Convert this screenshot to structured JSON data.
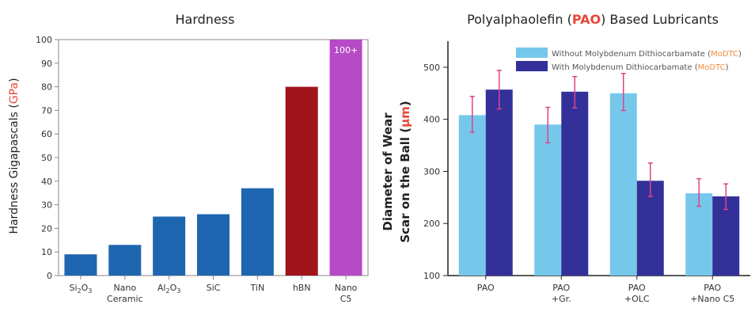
{
  "chart_data": [
    {
      "type": "bar",
      "title": "Hardness",
      "ylabel": {
        "pre": "Hardness Gigapascals (",
        "accent": "GPa",
        "post": ")"
      },
      "ylim": [
        0,
        100
      ],
      "yticks": [
        0,
        10,
        20,
        30,
        40,
        50,
        60,
        70,
        80,
        90,
        100
      ],
      "categories": [
        {
          "lines": [
            [
              [
                "Si",
                "n"
              ],
              [
                "2",
                "s"
              ],
              [
                "O",
                "n"
              ],
              [
                "3",
                "s"
              ]
            ]
          ]
        },
        {
          "lines": [
            [
              [
                "Nano",
                "n"
              ]
            ],
            [
              [
                "Ceramic",
                "n"
              ]
            ]
          ]
        },
        {
          "lines": [
            [
              [
                "Al",
                "n"
              ],
              [
                "2",
                "s"
              ],
              [
                "O",
                "n"
              ],
              [
                "3",
                "s"
              ]
            ]
          ]
        },
        {
          "lines": [
            [
              [
                "SiC",
                "n"
              ]
            ]
          ]
        },
        {
          "lines": [
            [
              [
                "TiN",
                "n"
              ]
            ]
          ]
        },
        {
          "lines": [
            [
              [
                "hBN",
                "n"
              ]
            ]
          ]
        },
        {
          "lines": [
            [
              [
                "Nano",
                "n"
              ]
            ],
            [
              [
                "C5",
                "n"
              ]
            ]
          ]
        }
      ],
      "values": [
        9,
        13,
        25,
        26,
        37,
        80,
        100
      ],
      "bar_colors": [
        "#1f66b0",
        "#1f66b0",
        "#1f66b0",
        "#1f66b0",
        "#1f66b0",
        "#a0141c",
        "#b64bc6"
      ],
      "value_labels": [
        "",
        "",
        "",
        "",
        "",
        "",
        "100+"
      ],
      "colors": {
        "accent": "#e8483a"
      }
    },
    {
      "type": "bar",
      "title": {
        "pre": "Polyalphaolefin (",
        "accent": "PAO",
        "post": ") Based Lubricants"
      },
      "ylabel": {
        "line1": "Diameter of Wear",
        "line2_pre": "Scar on the Ball (",
        "line2_accent": "μm",
        "line2_post": ")"
      },
      "ylim": [
        100,
        550
      ],
      "yticks": [
        100,
        200,
        300,
        400,
        500
      ],
      "categories": [
        {
          "lines": [
            "PAO"
          ]
        },
        {
          "lines": [
            "PAO",
            "+Gr."
          ]
        },
        {
          "lines": [
            "PAO",
            "+OLC"
          ]
        },
        {
          "lines": [
            "PAO",
            "+Nano C5"
          ]
        }
      ],
      "series": [
        {
          "legend": {
            "pre": "Without Molybdenum Dithiocarbamate (",
            "accent": "MoDTC",
            "post": ")"
          },
          "color": "#76c8ea",
          "values": [
            408,
            390,
            450,
            258
          ],
          "err_low": [
            375,
            355,
            417,
            233
          ],
          "err_high": [
            444,
            423,
            488,
            286
          ]
        },
        {
          "legend": {
            "pre": "With Molybdenum Dithiocarbamate (",
            "accent": "MoDTC",
            "post": ")"
          },
          "color": "#33309a",
          "values": [
            457,
            453,
            282,
            252
          ],
          "err_low": [
            420,
            422,
            252,
            227
          ],
          "err_high": [
            494,
            482,
            316,
            276
          ]
        }
      ],
      "legend_position": "top-right",
      "colors": {
        "accent": "#e8483a",
        "error_bar": "#e0408a",
        "legend_accent": "#f08c3c"
      }
    }
  ]
}
